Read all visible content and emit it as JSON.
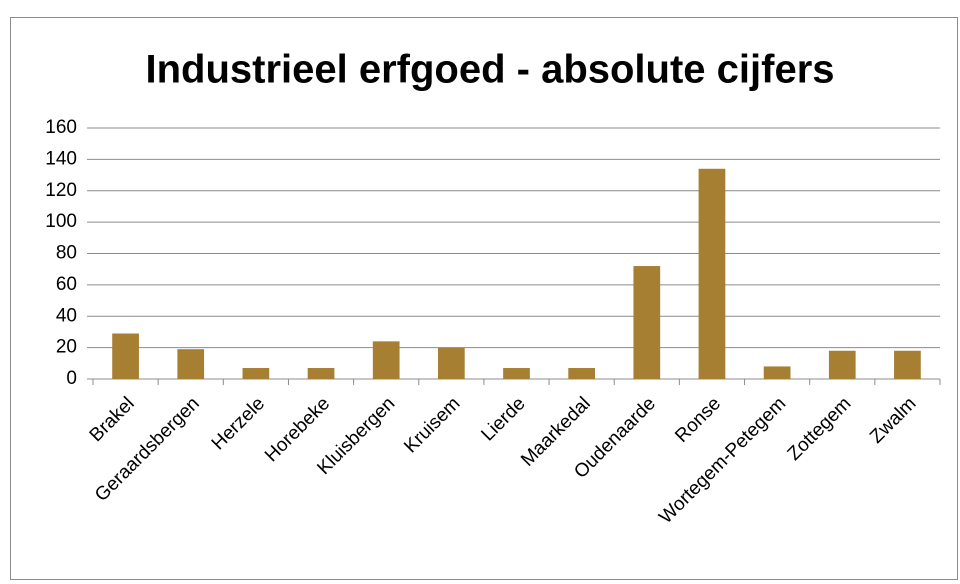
{
  "chart_data": {
    "type": "bar",
    "title": "Industrieel erfgoed - absolute cijfers",
    "categories": [
      "Brakel",
      "Geraardsbergen",
      "Herzele",
      "Horebeke",
      "Kluisbergen",
      "Kruisem",
      "Lierde",
      "Maarkedal",
      "Oudenaarde",
      "Ronse",
      "Wortegem-Petegem",
      "Zottegem",
      "Zwalm"
    ],
    "values": [
      29,
      19,
      7,
      7,
      24,
      20,
      7,
      7,
      72,
      134,
      8,
      18,
      18
    ],
    "color": "#a67f32",
    "ylim": [
      0,
      160
    ],
    "yticks": [
      0,
      20,
      40,
      60,
      80,
      100,
      120,
      140,
      160
    ],
    "grid": true
  }
}
